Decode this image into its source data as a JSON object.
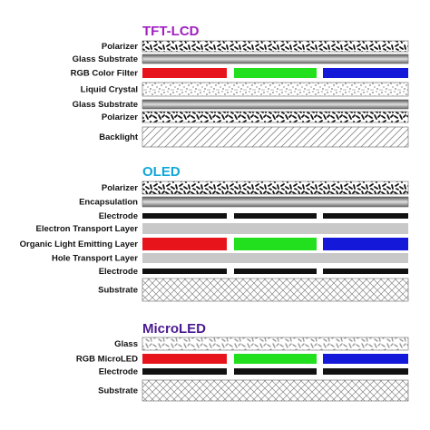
{
  "sections": [
    {
      "title": "TFT-LCD",
      "layers": [
        "Polarizer",
        "Glass Substrate",
        "RGB Color Filter",
        "Liquid Crystal",
        "Glass Substrate",
        "Polarizer",
        "Backlight"
      ]
    },
    {
      "title": "OLED",
      "layers": [
        "Polarizer",
        "Encapsulation",
        "Electrode",
        "Electron Transport Layer",
        "Organic Light Emitting Layer",
        "Hole Transport Layer",
        "Electrode",
        "Substrate"
      ]
    },
    {
      "title": "MicroLED",
      "layers": [
        "Glass",
        "RGB MicroLED",
        "Electrode",
        "Substrate"
      ]
    }
  ]
}
